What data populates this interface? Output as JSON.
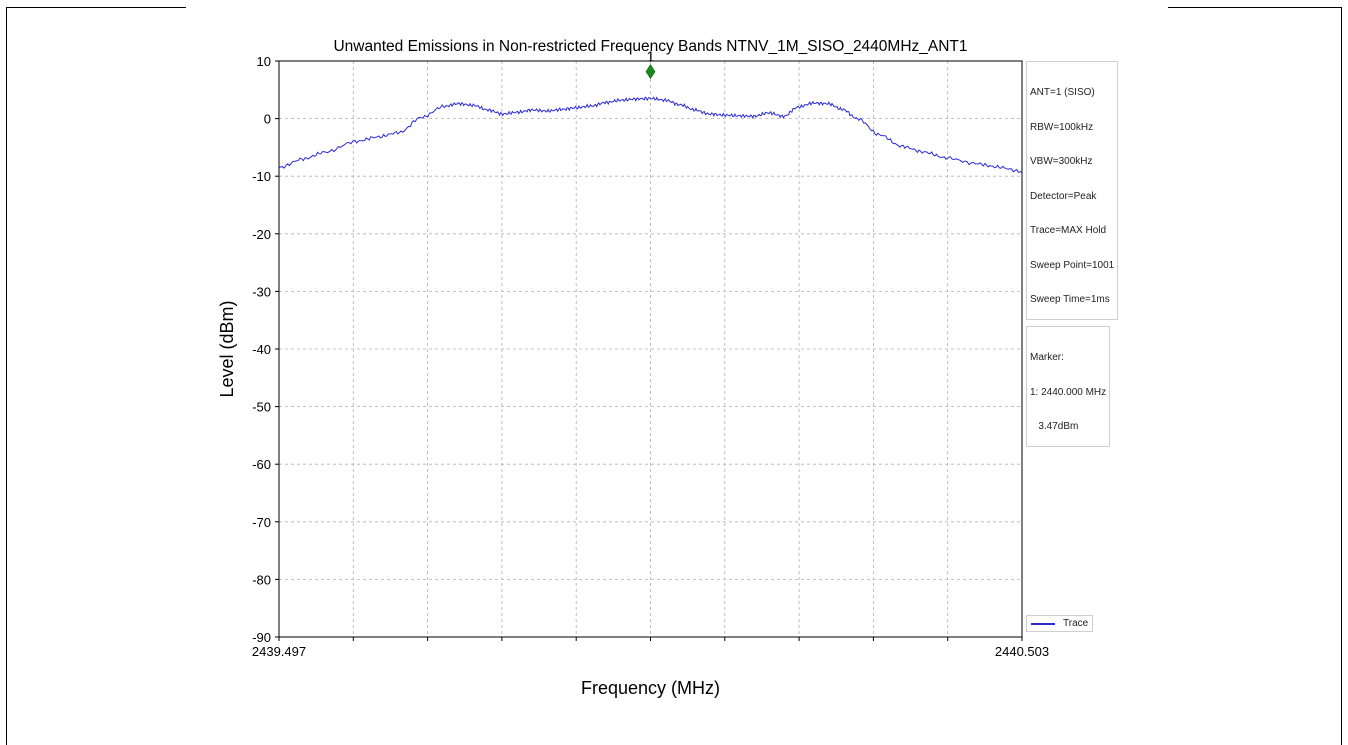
{
  "chart_data": {
    "type": "line",
    "title": "Unwanted Emissions in Non-restricted Frequency Bands NTNV_1M_SISO_2440MHz_ANT1",
    "xlabel": "Frequency (MHz)",
    "ylabel": "Level (dBm)",
    "xlim": [
      2439.497,
      2440.503
    ],
    "ylim": [
      -90,
      10
    ],
    "x_tick_labels": [
      "2439.497",
      "2440.503"
    ],
    "y_ticks": [
      10,
      0,
      -10,
      -20,
      -30,
      -40,
      -50,
      -60,
      -70,
      -80,
      -90
    ],
    "grid": true,
    "series": [
      {
        "name": "Trace",
        "color": "#2a2ad8",
        "x": [
          2439.497,
          2439.53,
          2439.56,
          2439.6,
          2439.63,
          2439.66,
          2439.69,
          2439.72,
          2439.74,
          2439.76,
          2439.78,
          2439.8,
          2439.82,
          2439.84,
          2439.86,
          2439.88,
          2439.9,
          2439.92,
          2439.94,
          2439.96,
          2439.98,
          2440.0,
          2440.02,
          2440.04,
          2440.06,
          2440.08,
          2440.1,
          2440.12,
          2440.14,
          2440.16,
          2440.18,
          2440.2,
          2440.22,
          2440.24,
          2440.26,
          2440.28,
          2440.31,
          2440.34,
          2440.37,
          2440.4,
          2440.44,
          2440.47,
          2440.503
        ],
        "y": [
          -8.5,
          -7.0,
          -5.8,
          -4.0,
          -3.2,
          -2.4,
          0.2,
          2.1,
          2.6,
          2.3,
          1.5,
          0.8,
          1.1,
          1.5,
          1.3,
          1.6,
          1.9,
          2.2,
          2.8,
          3.2,
          3.4,
          3.5,
          3.2,
          2.4,
          1.5,
          0.8,
          0.6,
          0.5,
          0.4,
          1.0,
          0.4,
          2.0,
          2.7,
          2.6,
          1.6,
          0.0,
          -2.8,
          -4.8,
          -5.8,
          -6.8,
          -7.8,
          -8.4,
          -9.2
        ]
      }
    ],
    "marker": {
      "label": "1",
      "x": 2440.0,
      "y": 3.47,
      "color": "#1a8a1a"
    },
    "legend_position": "bottom-right",
    "settings_box": [
      "ANT=1 (SISO)",
      "RBW=100kHz",
      "VBW=300kHz",
      "Detector=Peak",
      "Trace=MAX Hold",
      "Sweep Point=1001",
      "Sweep Time=1ms"
    ],
    "marker_box": [
      "Marker:",
      "1: 2440.000 MHz",
      "   3.47dBm"
    ]
  }
}
